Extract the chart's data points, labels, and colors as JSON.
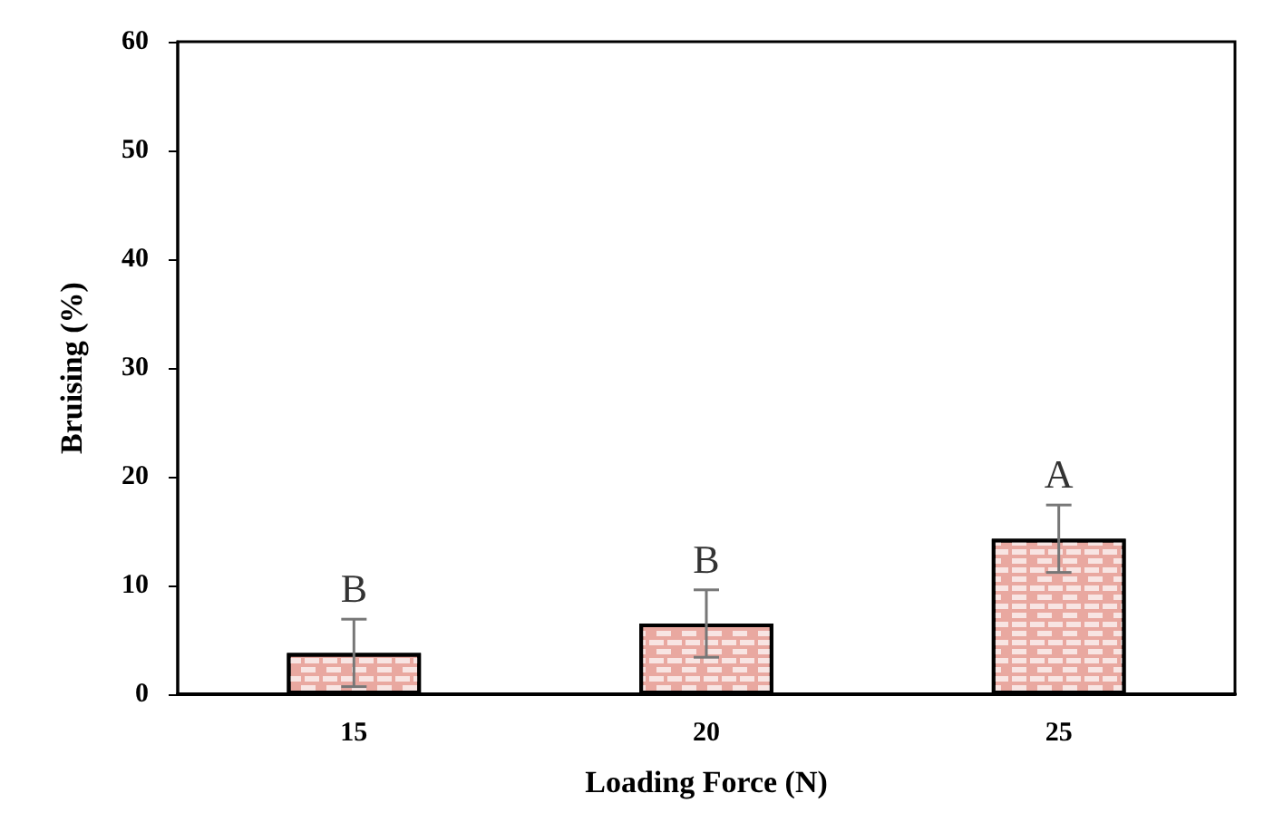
{
  "chart_data": {
    "type": "bar",
    "xlabel": "Loading Force (N)",
    "ylabel": "Bruising (%)",
    "categories": [
      "15",
      "20",
      "25"
    ],
    "values": [
      3.8,
      6.5,
      14.3
    ],
    "errors": [
      3.1,
      3.1,
      3.1
    ],
    "color": "#e9a8a0",
    "ylim": [
      0,
      60
    ],
    "yticks": [
      0,
      10,
      20,
      30,
      40,
      50,
      60
    ],
    "grid": false,
    "annotations": [
      "B",
      "B",
      "A"
    ]
  }
}
